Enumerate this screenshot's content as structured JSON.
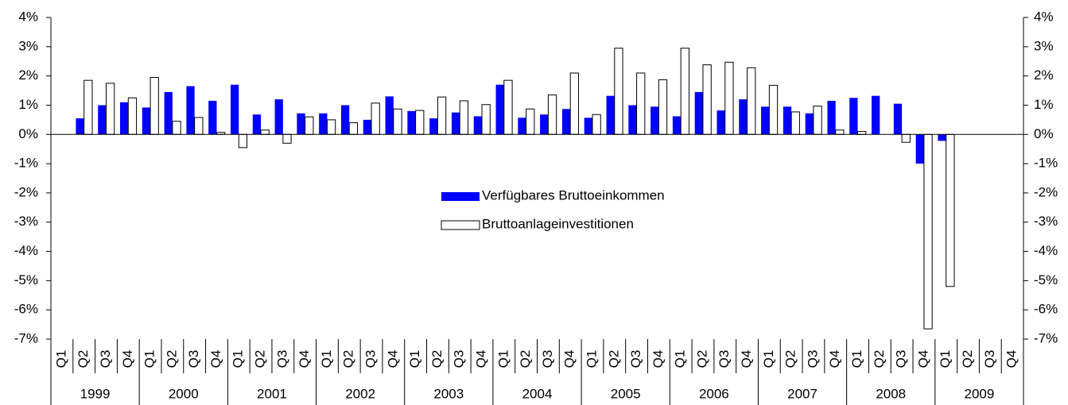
{
  "chart_data": {
    "type": "bar",
    "categories": [
      "Q1",
      "Q2",
      "Q3",
      "Q4",
      "Q1",
      "Q2",
      "Q3",
      "Q4",
      "Q1",
      "Q2",
      "Q3",
      "Q4",
      "Q1",
      "Q2",
      "Q3",
      "Q4",
      "Q1",
      "Q2",
      "Q3",
      "Q4",
      "Q1",
      "Q2",
      "Q3",
      "Q4",
      "Q1",
      "Q2",
      "Q3",
      "Q4",
      "Q1",
      "Q2",
      "Q3",
      "Q4",
      "Q1",
      "Q2",
      "Q3",
      "Q4",
      "Q1",
      "Q2",
      "Q3",
      "Q4",
      "Q1",
      "Q2",
      "Q3",
      "Q4"
    ],
    "years": [
      "1999",
      "2000",
      "2001",
      "2002",
      "2003",
      "2004",
      "2005",
      "2006",
      "2007",
      "2008",
      "2009"
    ],
    "series": [
      {
        "name": "Verfügbares Bruttoeinkommen",
        "color": "#0000ff",
        "values": [
          null,
          0.55,
          1.0,
          1.1,
          0.92,
          1.45,
          1.65,
          1.15,
          1.7,
          0.68,
          1.2,
          0.72,
          0.72,
          1.0,
          0.5,
          1.3,
          0.8,
          0.55,
          0.75,
          0.62,
          1.7,
          0.57,
          0.68,
          0.87,
          0.57,
          1.32,
          1.0,
          0.95,
          0.62,
          1.45,
          0.82,
          1.2,
          0.95,
          0.95,
          0.72,
          1.15,
          1.25,
          1.32,
          1.05,
          -1.0,
          -0.22,
          null,
          null,
          null
        ]
      },
      {
        "name": "Bruttoanlageinvestitionen",
        "color": "#ffffff",
        "values": [
          null,
          1.85,
          1.75,
          1.25,
          1.95,
          0.45,
          0.58,
          0.07,
          -0.45,
          0.15,
          -0.3,
          0.6,
          0.5,
          0.4,
          1.07,
          0.87,
          0.82,
          1.28,
          1.15,
          1.02,
          1.85,
          0.87,
          1.35,
          2.1,
          0.68,
          2.95,
          2.1,
          1.87,
          2.95,
          2.38,
          2.47,
          2.28,
          1.68,
          0.77,
          0.97,
          0.15,
          0.1,
          null,
          -0.27,
          -6.65,
          -5.2,
          null,
          null,
          null
        ]
      }
    ],
    "ylim": [
      -7,
      4
    ],
    "yticks": [
      {
        "value": -7,
        "label": "-7%"
      },
      {
        "value": -6,
        "label": "-6%"
      },
      {
        "value": -5,
        "label": "-5%"
      },
      {
        "value": -4,
        "label": "-4%"
      },
      {
        "value": -3,
        "label": "-3%"
      },
      {
        "value": -2,
        "label": "-2%"
      },
      {
        "value": -1,
        "label": "-1%"
      },
      {
        "value": 0,
        "label": "0%"
      },
      {
        "value": 1,
        "label": "1%"
      },
      {
        "value": 2,
        "label": "2%"
      },
      {
        "value": 3,
        "label": "3%"
      },
      {
        "value": 4,
        "label": "4%"
      }
    ],
    "y2lim": [
      -7,
      4
    ],
    "y2ticks": [
      {
        "value": -7,
        "label": "-7%"
      },
      {
        "value": -6,
        "label": "-6%"
      },
      {
        "value": -5,
        "label": "-5%"
      },
      {
        "value": -4,
        "label": "-4%"
      },
      {
        "value": -3,
        "label": "-3%"
      },
      {
        "value": -2,
        "label": "-2%"
      },
      {
        "value": -1,
        "label": "-1%"
      },
      {
        "value": 0,
        "label": "0%"
      },
      {
        "value": 1,
        "label": "1%"
      },
      {
        "value": 2,
        "label": "2%"
      },
      {
        "value": 3,
        "label": "3%"
      },
      {
        "value": 4,
        "label": "4%"
      }
    ]
  }
}
